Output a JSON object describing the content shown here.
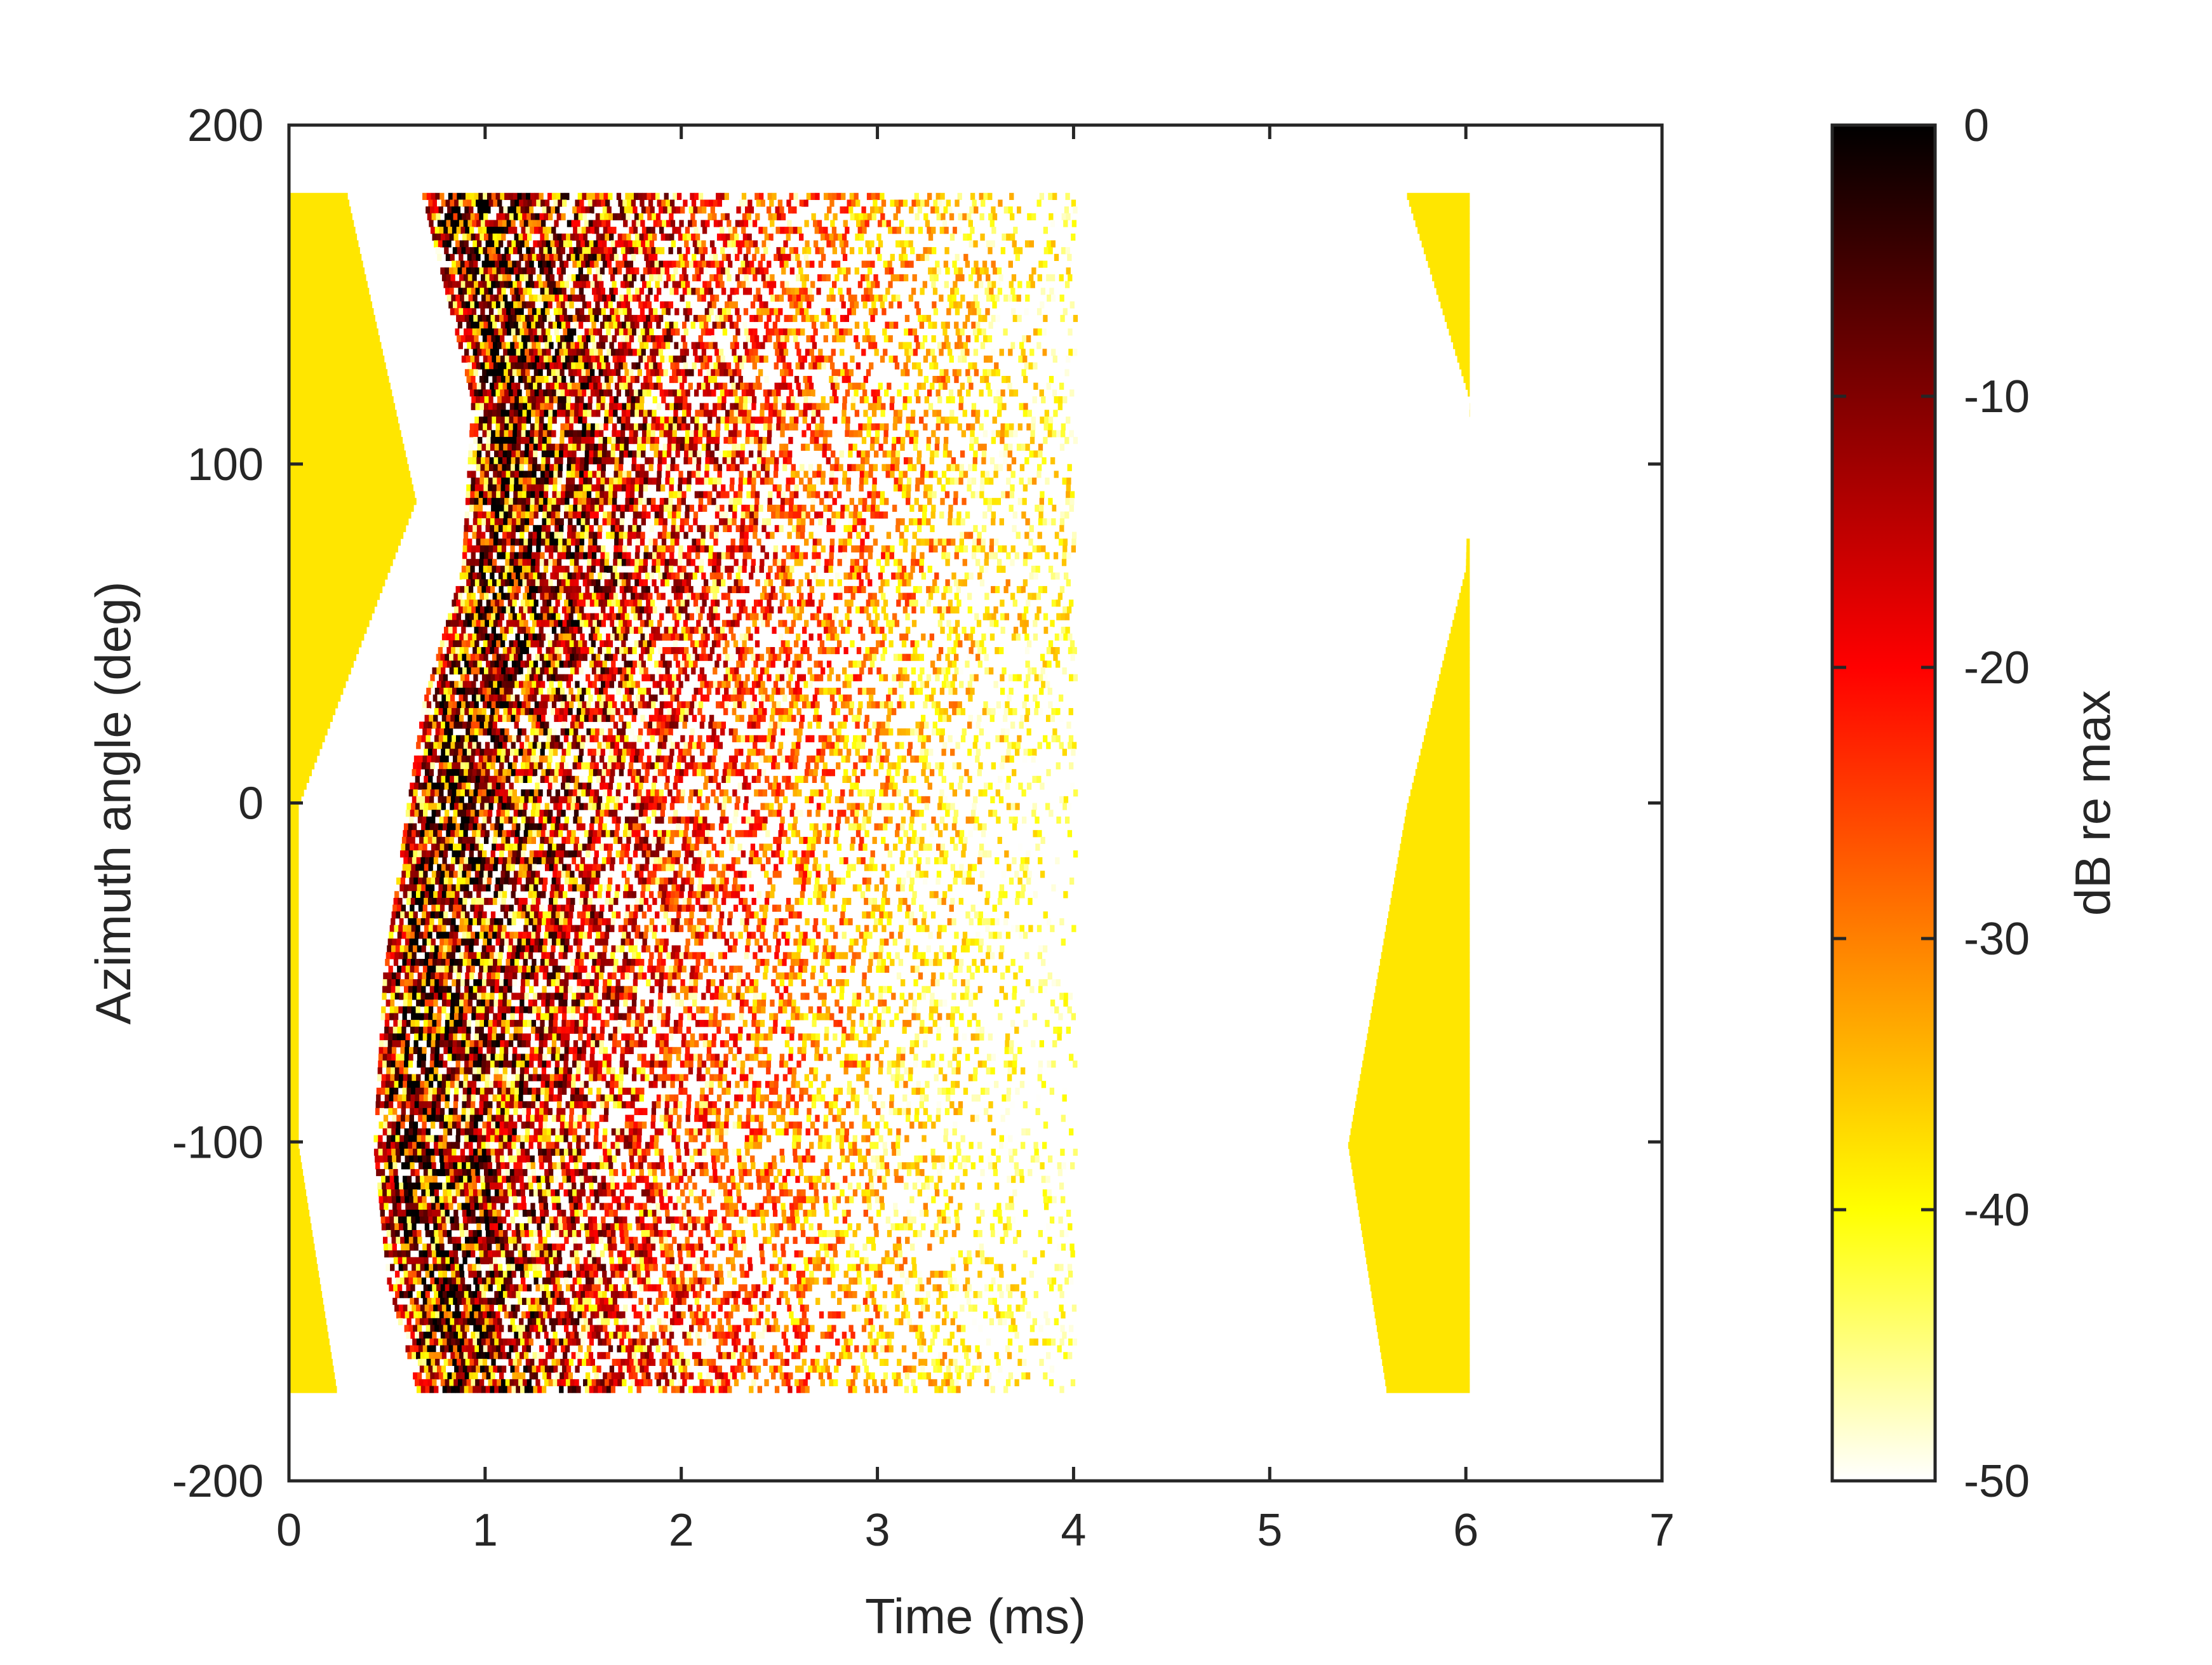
{
  "chart_data": {
    "type": "heatmap",
    "title": "",
    "xlabel": "Time (ms)",
    "ylabel": "Azimuth angle (deg)",
    "xlim": [
      0,
      7
    ],
    "ylim": [
      -200,
      200
    ],
    "xticks": [
      0,
      1,
      2,
      3,
      4,
      5,
      6,
      7
    ],
    "yticks": [
      -200,
      -100,
      0,
      100,
      200
    ],
    "grid": false,
    "colormap": "hot",
    "colorbar": {
      "label": "dB re max",
      "clim": [
        -50,
        0
      ],
      "ticks": [
        0,
        -10,
        -20,
        -30,
        -40,
        -50
      ],
      "colors": [
        "#000000",
        "#800000",
        "#ff0000",
        "#ff8000",
        "#ffff00",
        "#ffffff"
      ]
    },
    "data_extent": {
      "time_ms": [
        0,
        6.02
      ],
      "azimuth_deg": [
        -174,
        180
      ]
    },
    "regions": [
      {
        "name": "low-level onset band",
        "level_db": -38,
        "time_ms_at_azimuth": [
          [
            180,
            0.3
          ],
          [
            90,
            0.65
          ],
          [
            0,
            0.05
          ],
          [
            -100,
            0.05
          ],
          [
            -174,
            0.25
          ]
        ]
      },
      {
        "name": "direct-sound ridge",
        "level_db": -3,
        "time_ms_at_azimuth": [
          [
            180,
            0.8
          ],
          [
            120,
            1.05
          ],
          [
            70,
            1.0
          ],
          [
            30,
            0.8
          ],
          [
            0,
            0.72
          ],
          [
            -50,
            0.6
          ],
          [
            -100,
            0.55
          ],
          [
            -140,
            0.62
          ],
          [
            -174,
            0.78
          ]
        ]
      },
      {
        "name": "late low-level band",
        "level_db": -38,
        "time_ms_at_azimuth": [
          [
            180,
            5.7
          ],
          [
            120,
            6.02
          ],
          [
            70,
            6.0
          ],
          [
            0,
            5.7
          ],
          [
            -100,
            5.4
          ],
          [
            -174,
            5.6
          ]
        ]
      }
    ]
  }
}
